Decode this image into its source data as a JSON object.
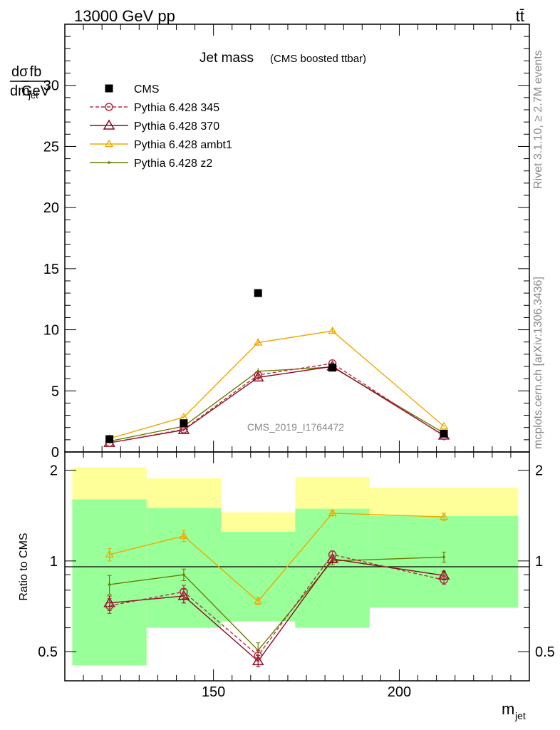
{
  "header": {
    "left": "13000 GeV pp",
    "right": "tt̄"
  },
  "side_text": {
    "rivet": "Rivet 3.1.10, ≥ 2.7M events",
    "mcplots": "mcplots.cern.ch [arXiv:1306.3436]"
  },
  "ylabel_main": {
    "num_left": "dσ",
    "num_right": "fb",
    "den_left": "dm",
    "den_sub": "jet",
    "den_right": "GeV"
  },
  "ylabel_ratio": "Ratio to CMS",
  "xlabel": {
    "main": "m",
    "sub": "jet"
  },
  "chart_data": [
    {
      "type": "scatter",
      "title": "Jet mass",
      "subtitle": "(CMS boosted ttbar)",
      "watermark": "CMS_2019_I1764472",
      "xlim": [
        110,
        235
      ],
      "ylim": [
        0,
        35
      ],
      "ytick_labels": [
        "0",
        "5",
        "10",
        "15",
        "20",
        "25",
        "30"
      ],
      "legend_position": "top-left",
      "x": [
        122,
        142,
        162,
        182,
        212
      ],
      "x_bins": [
        [
          112,
          132
        ],
        [
          132,
          152
        ],
        [
          152,
          172
        ],
        [
          172,
          192
        ],
        [
          192,
          232
        ]
      ],
      "series": [
        {
          "name": "CMS",
          "color": "#000000",
          "marker": "square",
          "line": "none",
          "values": [
            1.05,
            2.35,
            13.0,
            6.9,
            1.5
          ]
        },
        {
          "name": "Pythia 6.428 345",
          "color": "#b03040",
          "marker": "circle",
          "line": "dashed",
          "values": [
            0.75,
            1.85,
            6.3,
            7.25,
            1.3
          ],
          "errors": [
            0.05,
            0.1,
            0.2,
            0.2,
            0.05
          ]
        },
        {
          "name": "Pythia 6.428 370",
          "color": "#8b0a23",
          "marker": "triangle",
          "line": "solid",
          "values": [
            0.75,
            1.8,
            6.1,
            7.0,
            1.35
          ],
          "errors": [
            0.05,
            0.1,
            0.2,
            0.2,
            0.05
          ]
        },
        {
          "name": "Pythia 6.428 ambt1",
          "color": "#f0a800",
          "marker": "triangle-small",
          "line": "solid",
          "values": [
            1.1,
            2.85,
            8.95,
            9.9,
            2.1
          ],
          "errors": [
            0.05,
            0.1,
            0.25,
            0.25,
            0.05
          ]
        },
        {
          "name": "Pythia 6.428 z2",
          "color": "#6e7a00",
          "marker": "dot",
          "line": "solid",
          "values": [
            0.88,
            2.1,
            6.6,
            6.95,
            1.55
          ],
          "errors": [
            0.05,
            0.1,
            0.25,
            0.2,
            0.05
          ]
        }
      ]
    },
    {
      "type": "scatter",
      "xlabel": "m_jet",
      "ylabel": "Ratio to CMS",
      "log_scale_y": true,
      "xlim": [
        110,
        235
      ],
      "ylim": [
        0.4,
        2.3
      ],
      "xtick_labels": [
        "150",
        "200"
      ],
      "ytick_labels": [
        "0.5",
        "1",
        "2"
      ],
      "bands": {
        "yellow": {
          "color": "#ffff99",
          "low": [
            0.45,
            0.6,
            0.63,
            0.6,
            0.7
          ],
          "high": [
            2.05,
            1.88,
            1.45,
            1.9,
            1.75
          ]
        },
        "green": {
          "color": "#99ff99",
          "low": [
            0.45,
            0.6,
            0.63,
            0.6,
            0.7
          ],
          "high": [
            1.6,
            1.5,
            1.25,
            1.49,
            1.41
          ]
        }
      },
      "series": [
        {
          "name": "Pythia 6.428 345",
          "color": "#b03040",
          "marker": "circle",
          "line": "dashed",
          "values": [
            0.71,
            0.79,
            0.485,
            1.05,
            0.865
          ],
          "errors": [
            0.04,
            0.04,
            0.02,
            0.03,
            0.03
          ]
        },
        {
          "name": "Pythia 6.428 370",
          "color": "#8b0a23",
          "marker": "triangle",
          "line": "solid",
          "values": [
            0.725,
            0.765,
            0.465,
            1.015,
            0.895
          ],
          "errors": [
            0.04,
            0.04,
            0.02,
            0.03,
            0.03
          ]
        },
        {
          "name": "Pythia 6.428 ambt1",
          "color": "#f0a800",
          "marker": "triangle-small",
          "line": "solid",
          "values": [
            1.05,
            1.21,
            0.735,
            1.44,
            1.4
          ],
          "errors": [
            0.05,
            0.05,
            0.02,
            0.03,
            0.04
          ]
        },
        {
          "name": "Pythia 6.428 z2",
          "color": "#6e7a00",
          "marker": "dot",
          "line": "solid",
          "values": [
            0.835,
            0.9,
            0.505,
            1.0,
            1.03
          ],
          "errors": [
            0.06,
            0.04,
            0.03,
            0.03,
            0.04
          ]
        }
      ]
    }
  ]
}
